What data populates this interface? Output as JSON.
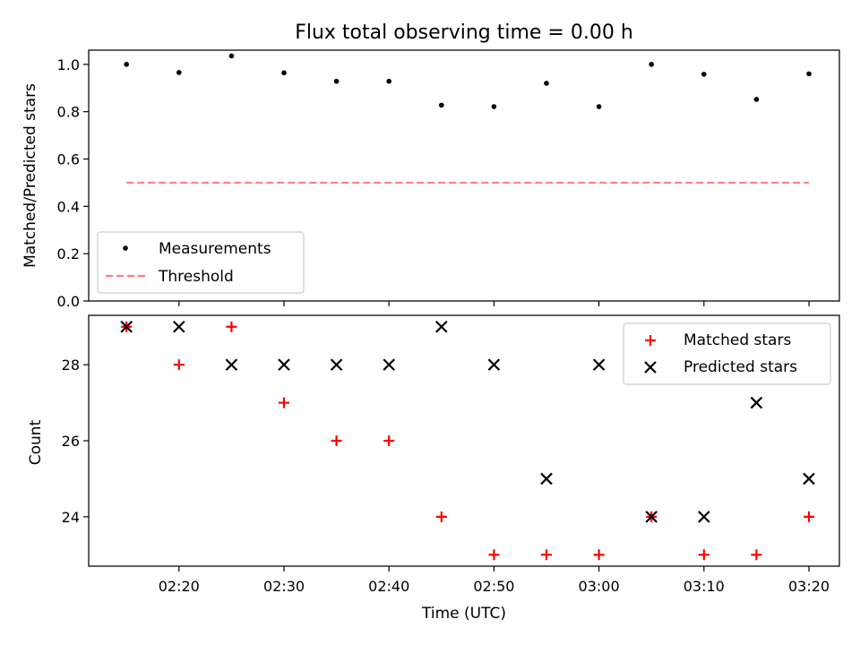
{
  "colors": {
    "measurement": "#000000",
    "threshold": "#ff7f7f",
    "matched": "#ff0000",
    "predicted": "#000000",
    "axes": "#000000",
    "background": "#ffffff"
  },
  "chart_data": [
    {
      "type": "scatter",
      "title": "Flux total observing time = 0.00 h",
      "xlabel": "",
      "ylabel": "Matched/Predicted stars",
      "x_minutes": [
        135,
        140,
        145,
        150,
        155,
        160,
        165,
        170,
        175,
        180,
        185,
        190,
        195,
        200
      ],
      "xlim": [
        131.4,
        202.9
      ],
      "ylim": [
        0.0,
        1.06
      ],
      "yticks": [
        0.0,
        0.2,
        0.4,
        0.6,
        0.8,
        1.0
      ],
      "ytick_labels": [
        "0.0",
        "0.2",
        "0.4",
        "0.6",
        "0.8",
        "1.0"
      ],
      "series": [
        {
          "name": "Measurements",
          "kind": "points",
          "values": [
            1.0,
            0.9655,
            1.0357,
            0.9643,
            0.9286,
            0.9286,
            0.8276,
            0.8214,
            0.92,
            0.8214,
            1.0,
            0.9583,
            0.8519,
            0.96
          ]
        },
        {
          "name": "Threshold",
          "kind": "dashed-line",
          "values": [
            0.5,
            0.5
          ]
        }
      ],
      "legend": {
        "placement": "lower-left",
        "entries": [
          "Measurements",
          "Threshold"
        ]
      }
    },
    {
      "type": "scatter",
      "title": "",
      "xlabel": "Time (UTC)",
      "ylabel": "Count",
      "x_minutes": [
        135,
        140,
        145,
        150,
        155,
        160,
        165,
        170,
        175,
        180,
        185,
        190,
        195,
        200
      ],
      "xlim": [
        131.4,
        202.9
      ],
      "ylim": [
        22.7,
        29.3
      ],
      "xticks": [
        140,
        150,
        160,
        170,
        180,
        190,
        200
      ],
      "xtick_labels": [
        "02:20",
        "02:30",
        "02:40",
        "02:50",
        "03:00",
        "03:10",
        "03:20"
      ],
      "yticks": [
        24,
        26,
        28
      ],
      "ytick_labels": [
        "24",
        "26",
        "28"
      ],
      "series": [
        {
          "name": "Matched stars",
          "marker": "plus",
          "values": [
            29,
            28,
            29,
            27,
            26,
            26,
            24,
            23,
            23,
            23,
            24,
            23,
            23,
            24
          ]
        },
        {
          "name": "Predicted stars",
          "marker": "x",
          "values": [
            29,
            29,
            28,
            28,
            28,
            28,
            29,
            28,
            25,
            28,
            24,
            24,
            27,
            25
          ]
        }
      ],
      "legend": {
        "placement": "upper-right",
        "entries": [
          "Matched stars",
          "Predicted stars"
        ]
      }
    }
  ]
}
